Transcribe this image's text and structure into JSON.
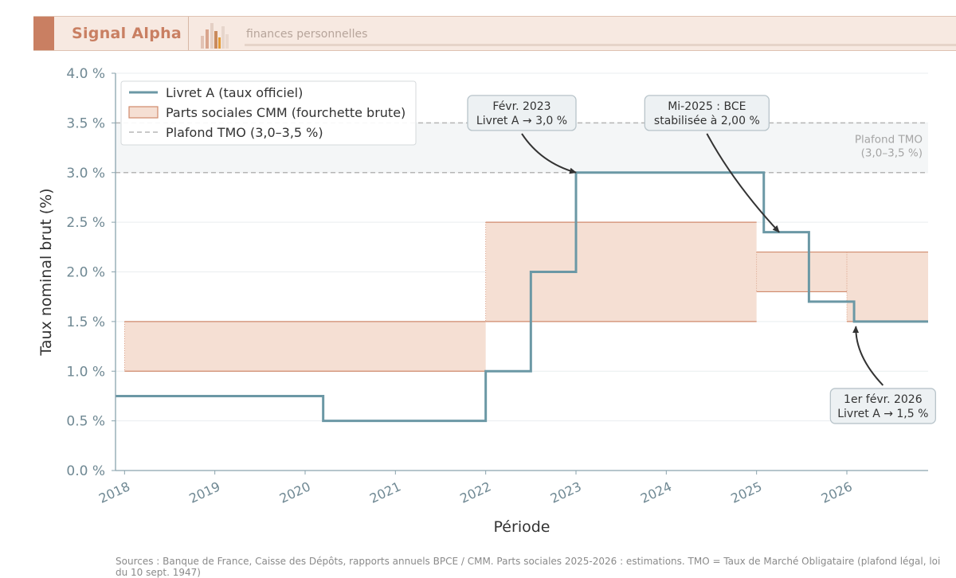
{
  "header": {
    "brand": "Signal Alpha",
    "tagline": "finances personnelles",
    "logo_icon": "bar-chart-icon"
  },
  "footer": {
    "sources_line1": "Sources : Banque de France, Caisse des Dépôts, rapports annuels BPCE / CMM. Parts sociales 2025-2026 : estimations. TMO = Taux de Marché Obligataire (plafond légal, loi",
    "sources_line2": "du 10 sept. 1947)"
  },
  "chart_data": {
    "type": "line",
    "xlabel": "Période",
    "ylabel": "Taux nominal brut (%)",
    "xlim": [
      2017.9,
      2026.9
    ],
    "ylim": [
      0,
      4.0
    ],
    "x_ticks": [
      2018,
      2019,
      2020,
      2021,
      2022,
      2023,
      2024,
      2025,
      2026
    ],
    "x_tick_labels": [
      "2018",
      "2019",
      "2020",
      "2021",
      "2022",
      "2023",
      "2024",
      "2025",
      "2026"
    ],
    "y_ticks": [
      0,
      0.5,
      1.0,
      1.5,
      2.0,
      2.5,
      3.0,
      3.5,
      4.0
    ],
    "y_tick_labels": [
      "0.0 %",
      "0.5 %",
      "1.0 %",
      "1.5 %",
      "2.0 %",
      "2.5 %",
      "3.0 %",
      "3.5 %",
      "4.0 %"
    ],
    "grid": true,
    "legend_position": "top-left",
    "colors": {
      "livret": "#6b98a5",
      "band_fill": "#f5dfd3",
      "band_edge": "#d08a6c",
      "tmo": "#b5b5b5",
      "tmo_fill": "#f4f6f7",
      "axis": "#8aa3ad"
    },
    "series": [
      {
        "name": "Livret A (taux officiel)",
        "kind": "step",
        "x": [
          2017.9,
          2020.2,
          2022.0,
          2022.5,
          2023.0,
          2025.08,
          2025.58,
          2026.08,
          2026.9
        ],
        "y": [
          0.75,
          0.5,
          1.0,
          2.0,
          3.0,
          2.4,
          1.7,
          1.5,
          1.5
        ]
      },
      {
        "name": "Parts sociales CMM (fourchette brute)",
        "kind": "band",
        "segments": [
          {
            "x0": 2018.0,
            "x1": 2022.0,
            "low": 1.0,
            "high": 1.5
          },
          {
            "x0": 2022.0,
            "x1": 2025.0,
            "low": 1.5,
            "high": 2.5
          },
          {
            "x0": 2025.0,
            "x1": 2026.0,
            "low": 1.8,
            "high": 2.2
          },
          {
            "x0": 2026.0,
            "x1": 2026.9,
            "low": 1.5,
            "high": 2.2
          }
        ]
      },
      {
        "name": "Plafond TMO (3,0–3,5 %)",
        "kind": "range",
        "low": 3.0,
        "high": 3.5
      }
    ],
    "range_label_line1": "Plafond TMO",
    "range_label_line2": "(3,0–3,5 %)",
    "annotations": [
      {
        "line1": "Févr. 2023",
        "line2": "Livret A → 3,0 %",
        "x": 2022.4,
        "y": 3.6,
        "target_x": 2023.0,
        "target_y": 3.0
      },
      {
        "line1": "Mi-2025 : BCE",
        "line2": "stabilisée à 2,00 %",
        "x": 2024.45,
        "y": 3.6,
        "target_x": 2025.25,
        "target_y": 2.4
      },
      {
        "line1": "1er févr. 2026",
        "line2": "Livret A → 1,5 %",
        "x": 2026.4,
        "y": 0.65,
        "target_x": 2026.1,
        "target_y": 1.45
      }
    ]
  }
}
